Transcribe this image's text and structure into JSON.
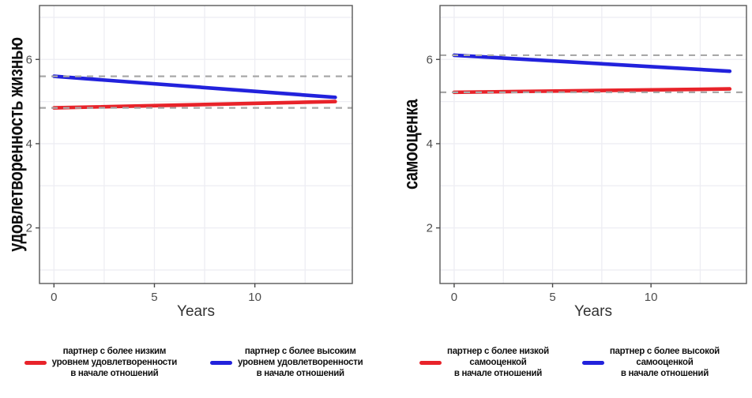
{
  "colors": {
    "red": "#E8232A",
    "blue": "#2222DC",
    "dashed_reference": "#A8A8A8",
    "grid": "#EDEDF3",
    "panel_border": "#595959",
    "tick_mark": "#4A4A4A",
    "tick_label": "#4D4D4D",
    "axis_label": "#333333",
    "axis_title": "#0F0F0F",
    "legend_text": "#111111",
    "background": "#FFFFFF"
  },
  "chart_data": [
    {
      "type": "line",
      "title": "",
      "xlabel": "Years",
      "ylabel": "удовлетворенность жизнью",
      "xlim": [
        -0.72,
        14.85
      ],
      "ylim": [
        0.68,
        7.28
      ],
      "x_ticks": [
        0,
        5,
        10
      ],
      "x_minor_ticks": [
        2.5,
        7.5,
        12.5
      ],
      "y_ticks": [
        2,
        4,
        6
      ],
      "y_minor_ticks": [
        1,
        3,
        5,
        7
      ],
      "grid": true,
      "legend_position": "bottom",
      "series": [
        {
          "name": "партнер с более низким уровнем удовлетворенности в начале отношений",
          "color": "red",
          "x": [
            0,
            14
          ],
          "y": [
            4.85,
            5.0
          ],
          "reference_dashed_y": 4.85
        },
        {
          "name": "партнер с более высоким уровнем удовлетворенности в начале отношений",
          "color": "blue",
          "x": [
            0,
            14
          ],
          "y": [
            5.6,
            5.1
          ],
          "reference_dashed_y": 5.6
        }
      ],
      "legend": [
        {
          "color": "red",
          "lines": [
            "партнер с более низким",
            "уровнем удовлетворенности",
            "в начале отношений"
          ]
        },
        {
          "color": "blue",
          "lines": [
            "партнер с более высоким",
            "уровнем удовлетворенности",
            "в начале отношений"
          ]
        }
      ]
    },
    {
      "type": "line",
      "title": "",
      "xlabel": "Years",
      "ylabel": "самооценка",
      "xlim": [
        -0.72,
        14.85
      ],
      "ylim": [
        0.68,
        7.28
      ],
      "x_ticks": [
        0,
        5,
        10
      ],
      "x_minor_ticks": [
        2.5,
        7.5,
        12.5
      ],
      "y_ticks": [
        2,
        4,
        6
      ],
      "y_minor_ticks": [
        1,
        3,
        5,
        7
      ],
      "grid": true,
      "legend_position": "bottom",
      "series": [
        {
          "name": "партнер с более низкой самооценкой в начале отношений",
          "color": "red",
          "x": [
            0,
            14
          ],
          "y": [
            5.22,
            5.3
          ],
          "reference_dashed_y": 5.22
        },
        {
          "name": "партнер с более высокой самооценкой в начале отношений",
          "color": "blue",
          "x": [
            0,
            14
          ],
          "y": [
            6.1,
            5.72
          ],
          "reference_dashed_y": 6.1
        }
      ],
      "legend": [
        {
          "color": "red",
          "lines": [
            "партнер с более низкой",
            "самооценкой",
            "в начале отношений"
          ]
        },
        {
          "color": "blue",
          "lines": [
            "партнер с более высокой",
            "самооценкой",
            "в начале отношений"
          ]
        }
      ]
    }
  ]
}
